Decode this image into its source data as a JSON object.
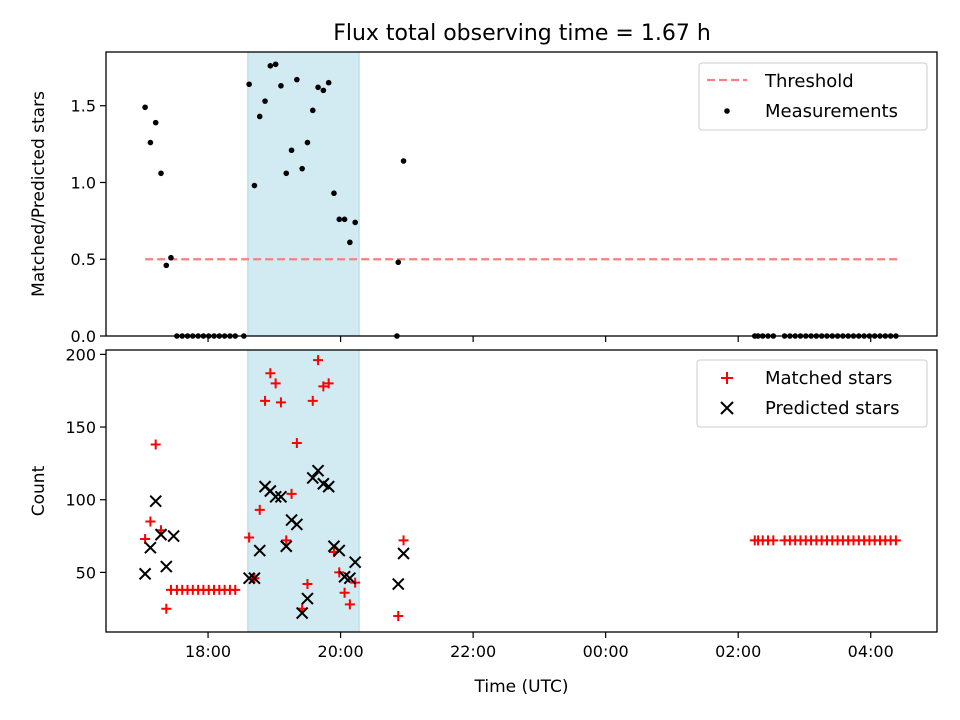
{
  "title": "Flux total observing time = 1.67 h",
  "colors": {
    "threshold": "#ff7f7f",
    "measurements": "#000000",
    "matched": "#ff0000",
    "predicted": "#000000",
    "shade": "#add8e6"
  },
  "chart_data": [
    {
      "type": "scatter",
      "panel": "top",
      "ylabel": "Matched/Predicted stars",
      "xlabel": "",
      "xlim": [
        -1.54,
        11.0
      ],
      "ylim": [
        0,
        1.85
      ],
      "yticks": [
        0.0,
        0.5,
        1.0,
        1.5
      ],
      "ytick_labels": [
        "0.0",
        "0.5",
        "1.0",
        "1.5"
      ],
      "xticks": [
        0,
        2,
        4,
        6,
        8,
        10
      ],
      "xtick_labels": [
        "",
        "",
        "",
        "",
        "",
        ""
      ],
      "shaded_span": [
        0.6,
        2.28
      ],
      "legend": {
        "position": "top-right",
        "entries": [
          "Threshold",
          "Measurements"
        ]
      },
      "series": [
        {
          "name": "Threshold",
          "kind": "dashed-line",
          "points": [
            [
              -0.95,
              0.5
            ],
            [
              10.4,
              0.5
            ]
          ]
        },
        {
          "name": "Measurements",
          "kind": "dot",
          "points": [
            [
              -0.95,
              1.49
            ],
            [
              -0.87,
              1.26
            ],
            [
              -0.79,
              1.39
            ],
            [
              -0.71,
              1.06
            ],
            [
              -0.63,
              0.46
            ],
            [
              -0.56,
              0.51
            ],
            [
              -0.47,
              0.0
            ],
            [
              -0.39,
              0.0
            ],
            [
              -0.31,
              0.0
            ],
            [
              -0.23,
              0.0
            ],
            [
              -0.15,
              0.0
            ],
            [
              -0.07,
              0.0
            ],
            [
              0.01,
              0.0
            ],
            [
              0.09,
              0.0
            ],
            [
              0.17,
              0.0
            ],
            [
              0.25,
              0.0
            ],
            [
              0.33,
              0.0
            ],
            [
              0.41,
              0.0
            ],
            [
              0.54,
              0.0
            ],
            [
              0.62,
              1.64
            ],
            [
              0.7,
              0.98
            ],
            [
              0.78,
              1.43
            ],
            [
              0.86,
              1.53
            ],
            [
              0.94,
              1.76
            ],
            [
              1.02,
              1.77
            ],
            [
              1.1,
              1.63
            ],
            [
              1.18,
              1.06
            ],
            [
              1.26,
              1.21
            ],
            [
              1.34,
              1.67
            ],
            [
              1.42,
              1.09
            ],
            [
              1.5,
              1.26
            ],
            [
              1.58,
              1.47
            ],
            [
              1.66,
              1.62
            ],
            [
              1.74,
              1.6
            ],
            [
              1.82,
              1.65
            ],
            [
              1.9,
              0.93
            ],
            [
              1.98,
              0.76
            ],
            [
              2.06,
              0.76
            ],
            [
              2.14,
              0.61
            ],
            [
              2.22,
              0.74
            ],
            [
              2.85,
              0.0
            ],
            [
              2.87,
              0.48
            ],
            [
              2.95,
              1.14
            ],
            [
              8.25,
              0.0
            ],
            [
              8.3,
              0.0
            ],
            [
              8.37,
              0.0
            ],
            [
              8.45,
              0.0
            ],
            [
              8.53,
              0.0
            ],
            [
              8.7,
              0.0
            ],
            [
              8.78,
              0.0
            ],
            [
              8.86,
              0.0
            ],
            [
              8.94,
              0.0
            ],
            [
              9.02,
              0.0
            ],
            [
              9.1,
              0.0
            ],
            [
              9.18,
              0.0
            ],
            [
              9.26,
              0.0
            ],
            [
              9.34,
              0.0
            ],
            [
              9.42,
              0.0
            ],
            [
              9.5,
              0.0
            ],
            [
              9.58,
              0.0
            ],
            [
              9.66,
              0.0
            ],
            [
              9.74,
              0.0
            ],
            [
              9.82,
              0.0
            ],
            [
              9.9,
              0.0
            ],
            [
              9.98,
              0.0
            ],
            [
              10.06,
              0.0
            ],
            [
              10.14,
              0.0
            ],
            [
              10.22,
              0.0
            ],
            [
              10.3,
              0.0
            ],
            [
              10.38,
              0.0
            ]
          ]
        }
      ]
    },
    {
      "type": "scatter",
      "panel": "bottom",
      "ylabel": "Count",
      "xlabel": "Time (UTC)",
      "xlim": [
        -1.54,
        11.0
      ],
      "ylim": [
        9,
        203
      ],
      "yticks": [
        50,
        100,
        150,
        200
      ],
      "ytick_labels": [
        "50",
        "100",
        "150",
        "200"
      ],
      "xticks": [
        0,
        2,
        4,
        6,
        8,
        10
      ],
      "xtick_labels": [
        "18:00",
        "20:00",
        "22:00",
        "00:00",
        "02:00",
        "04:00"
      ],
      "shaded_span": [
        0.6,
        2.28
      ],
      "legend": {
        "position": "top-right",
        "entries": [
          "Matched stars",
          "Predicted stars"
        ]
      },
      "series": [
        {
          "name": "Matched stars",
          "kind": "plus",
          "points": [
            [
              -0.95,
              73
            ],
            [
              -0.87,
              85
            ],
            [
              -0.79,
              138
            ],
            [
              -0.71,
              79
            ],
            [
              -0.63,
              25
            ],
            [
              -0.56,
              38
            ],
            [
              -0.47,
              38
            ],
            [
              -0.39,
              38
            ],
            [
              -0.31,
              38
            ],
            [
              -0.23,
              38
            ],
            [
              -0.15,
              38
            ],
            [
              -0.07,
              38
            ],
            [
              0.01,
              38
            ],
            [
              0.09,
              38
            ],
            [
              0.17,
              38
            ],
            [
              0.25,
              38
            ],
            [
              0.33,
              38
            ],
            [
              0.41,
              38
            ],
            [
              0.62,
              74
            ],
            [
              0.7,
              46
            ],
            [
              0.78,
              93
            ],
            [
              0.86,
              168
            ],
            [
              0.94,
              187
            ],
            [
              1.02,
              180
            ],
            [
              1.1,
              167
            ],
            [
              1.18,
              72
            ],
            [
              1.26,
              104
            ],
            [
              1.34,
              139
            ],
            [
              1.42,
              25
            ],
            [
              1.5,
              42
            ],
            [
              1.58,
              168
            ],
            [
              1.66,
              196
            ],
            [
              1.74,
              178
            ],
            [
              1.82,
              180
            ],
            [
              1.9,
              64
            ],
            [
              1.98,
              50
            ],
            [
              2.06,
              36
            ],
            [
              2.14,
              28
            ],
            [
              2.22,
              43
            ],
            [
              2.87,
              20
            ],
            [
              2.95,
              72
            ],
            [
              8.25,
              72
            ],
            [
              8.3,
              72
            ],
            [
              8.37,
              72
            ],
            [
              8.45,
              72
            ],
            [
              8.53,
              72
            ],
            [
              8.7,
              72
            ],
            [
              8.78,
              72
            ],
            [
              8.86,
              72
            ],
            [
              8.94,
              72
            ],
            [
              9.02,
              72
            ],
            [
              9.1,
              72
            ],
            [
              9.18,
              72
            ],
            [
              9.26,
              72
            ],
            [
              9.34,
              72
            ],
            [
              9.42,
              72
            ],
            [
              9.5,
              72
            ],
            [
              9.58,
              72
            ],
            [
              9.66,
              72
            ],
            [
              9.74,
              72
            ],
            [
              9.82,
              72
            ],
            [
              9.9,
              72
            ],
            [
              9.98,
              72
            ],
            [
              10.06,
              72
            ],
            [
              10.14,
              72
            ],
            [
              10.22,
              72
            ],
            [
              10.3,
              72
            ],
            [
              10.38,
              72
            ]
          ]
        },
        {
          "name": "Predicted stars",
          "kind": "cross",
          "points": [
            [
              -0.95,
              49
            ],
            [
              -0.87,
              67
            ],
            [
              -0.79,
              99
            ],
            [
              -0.71,
              76
            ],
            [
              -0.63,
              54
            ],
            [
              -0.52,
              75
            ],
            [
              0.62,
              46
            ],
            [
              0.7,
              46
            ],
            [
              0.78,
              65
            ],
            [
              0.86,
              109
            ],
            [
              0.94,
              106
            ],
            [
              1.02,
              102
            ],
            [
              1.1,
              102
            ],
            [
              1.18,
              68
            ],
            [
              1.26,
              86
            ],
            [
              1.34,
              83
            ],
            [
              1.42,
              22
            ],
            [
              1.5,
              32
            ],
            [
              1.58,
              115
            ],
            [
              1.66,
              120
            ],
            [
              1.74,
              111
            ],
            [
              1.82,
              109
            ],
            [
              1.9,
              68
            ],
            [
              1.98,
              65
            ],
            [
              2.06,
              47
            ],
            [
              2.14,
              46
            ],
            [
              2.22,
              57
            ],
            [
              2.87,
              42
            ],
            [
              2.95,
              63
            ]
          ]
        }
      ]
    }
  ]
}
